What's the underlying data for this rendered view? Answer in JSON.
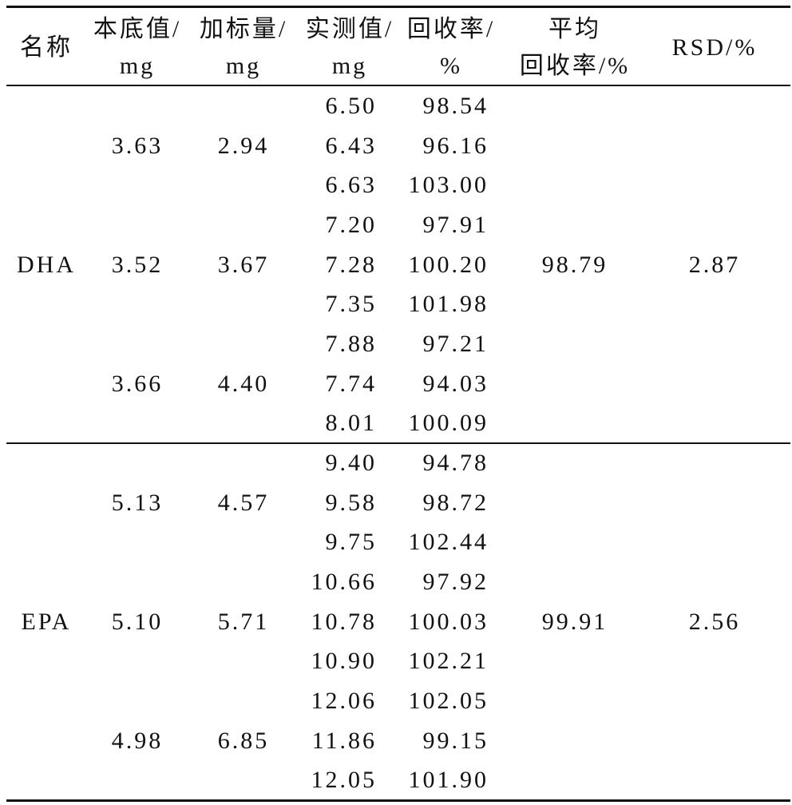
{
  "header": [
    [
      "名称"
    ],
    [
      "本底值/",
      "mg"
    ],
    [
      "加标量/",
      "mg"
    ],
    [
      "实测值/",
      "mg"
    ],
    [
      "回收率/",
      "%"
    ],
    [
      "平均",
      "回收率/%"
    ],
    [
      "RSD/%"
    ]
  ],
  "groups": [
    {
      "name": "DHA",
      "mean_recovery": "98.79",
      "rsd": "2.87",
      "levels": [
        {
          "base": "3.63",
          "added": "2.94",
          "measured": [
            "6.50",
            "6.43",
            "6.63"
          ],
          "recovery": [
            "98.54",
            "96.16",
            "103.00"
          ]
        },
        {
          "base": "3.52",
          "added": "3.67",
          "measured": [
            "7.20",
            "7.28",
            "7.35"
          ],
          "recovery": [
            "97.91",
            "100.20",
            "101.98"
          ]
        },
        {
          "base": "3.66",
          "added": "4.40",
          "measured": [
            "7.88",
            "7.74",
            "8.01"
          ],
          "recovery": [
            "97.21",
            "94.03",
            "100.09"
          ]
        }
      ]
    },
    {
      "name": "EPA",
      "mean_recovery": "99.91",
      "rsd": "2.56",
      "levels": [
        {
          "base": "5.13",
          "added": "4.57",
          "measured": [
            "9.40",
            "9.58",
            "9.75"
          ],
          "recovery": [
            "94.78",
            "98.72",
            "102.44"
          ]
        },
        {
          "base": "5.10",
          "added": "5.71",
          "measured": [
            "10.66",
            "10.78",
            "10.90"
          ],
          "recovery": [
            "97.92",
            "100.03",
            "102.21"
          ]
        },
        {
          "base": "4.98",
          "added": "6.85",
          "measured": [
            "12.06",
            "11.86",
            "12.05"
          ],
          "recovery": [
            "102.05",
            "99.15",
            "101.90"
          ]
        }
      ]
    }
  ]
}
